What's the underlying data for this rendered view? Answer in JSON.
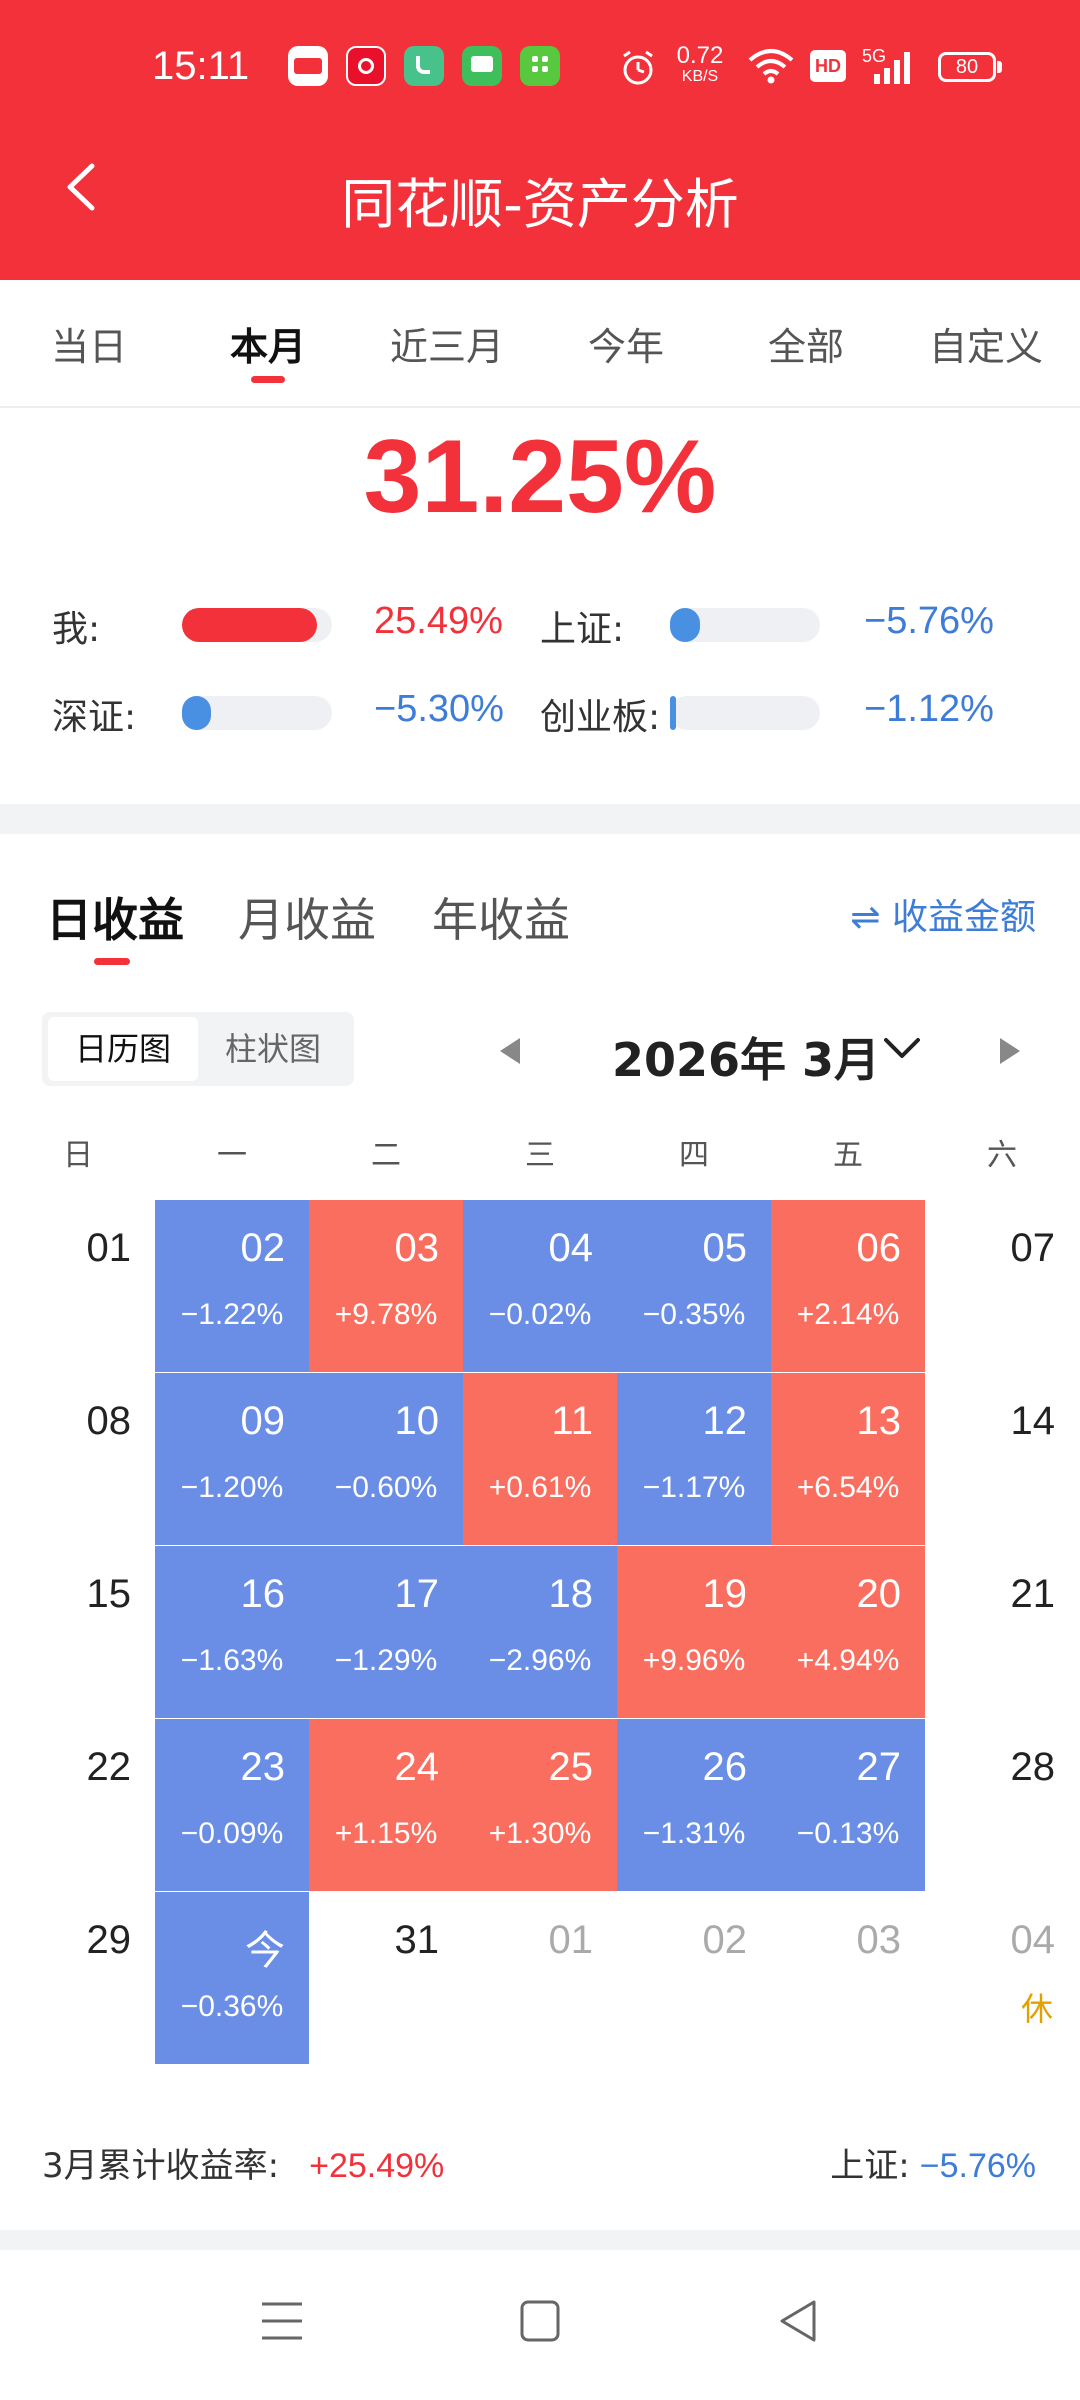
{
  "status_bar": {
    "time": "15:11",
    "net_speed_value": "0.72",
    "net_speed_unit": "KB/S",
    "hd": "HD",
    "network": "5G",
    "battery": "80",
    "app_icons": [
      "toutiao-icon",
      "app-red-icon",
      "phone-icon",
      "message-icon",
      "shop-icon"
    ]
  },
  "header": {
    "title": "同花顺-资产分析"
  },
  "period_tabs": [
    "当日",
    "本月",
    "近三月",
    "今年",
    "全部",
    "自定义"
  ],
  "active_period": "本月",
  "summary": {
    "total_pct": "31.25%",
    "comparisons": [
      {
        "label": "我:",
        "value": "25.49%",
        "fill": 0.9,
        "color": "#f2313b"
      },
      {
        "label": "上证:",
        "value": "−5.76%",
        "fill": 0.2,
        "color": "#4a90e2"
      },
      {
        "label": "深证:",
        "value": "−5.30%",
        "fill": 0.19,
        "color": "#4a90e2"
      },
      {
        "label": "创业板:",
        "value": "−1.12%",
        "fill": 0.03,
        "color": "#4a90e2"
      }
    ]
  },
  "returns_tabs": [
    "日收益",
    "月收益",
    "年收益"
  ],
  "active_returns_tab": "日收益",
  "switch_link": "⇌ 收益金额",
  "view_toggle": [
    "日历图",
    "柱状图"
  ],
  "active_view": "日历图",
  "month_label": "2026年 3月",
  "weekdays": [
    "日",
    "一",
    "二",
    "三",
    "四",
    "五",
    "六"
  ],
  "calendar": [
    [
      {
        "day": "01",
        "pct": "",
        "type": "plain"
      },
      {
        "day": "02",
        "pct": "−1.22%",
        "type": "loss"
      },
      {
        "day": "03",
        "pct": "+9.78%",
        "type": "gain"
      },
      {
        "day": "04",
        "pct": "−0.02%",
        "type": "loss"
      },
      {
        "day": "05",
        "pct": "−0.35%",
        "type": "loss"
      },
      {
        "day": "06",
        "pct": "+2.14%",
        "type": "gain"
      },
      {
        "day": "07",
        "pct": "",
        "type": "plain"
      }
    ],
    [
      {
        "day": "08",
        "pct": "",
        "type": "plain"
      },
      {
        "day": "09",
        "pct": "−1.20%",
        "type": "loss"
      },
      {
        "day": "10",
        "pct": "−0.60%",
        "type": "loss"
      },
      {
        "day": "11",
        "pct": "+0.61%",
        "type": "gain"
      },
      {
        "day": "12",
        "pct": "−1.17%",
        "type": "loss"
      },
      {
        "day": "13",
        "pct": "+6.54%",
        "type": "gain"
      },
      {
        "day": "14",
        "pct": "",
        "type": "plain"
      }
    ],
    [
      {
        "day": "15",
        "pct": "",
        "type": "plain"
      },
      {
        "day": "16",
        "pct": "−1.63%",
        "type": "loss"
      },
      {
        "day": "17",
        "pct": "−1.29%",
        "type": "loss"
      },
      {
        "day": "18",
        "pct": "−2.96%",
        "type": "loss"
      },
      {
        "day": "19",
        "pct": "+9.96%",
        "type": "gain"
      },
      {
        "day": "20",
        "pct": "+4.94%",
        "type": "gain"
      },
      {
        "day": "21",
        "pct": "",
        "type": "plain"
      }
    ],
    [
      {
        "day": "22",
        "pct": "",
        "type": "plain"
      },
      {
        "day": "23",
        "pct": "−0.09%",
        "type": "loss"
      },
      {
        "day": "24",
        "pct": "+1.15%",
        "type": "gain"
      },
      {
        "day": "25",
        "pct": "+1.30%",
        "type": "gain"
      },
      {
        "day": "26",
        "pct": "−1.31%",
        "type": "loss"
      },
      {
        "day": "27",
        "pct": "−0.13%",
        "type": "loss"
      },
      {
        "day": "28",
        "pct": "",
        "type": "plain"
      }
    ],
    [
      {
        "day": "29",
        "pct": "",
        "type": "plain"
      },
      {
        "day": "今",
        "pct": "−0.36%",
        "type": "loss"
      },
      {
        "day": "31",
        "pct": "",
        "type": "plain"
      },
      {
        "day": "01",
        "pct": "",
        "type": "muted"
      },
      {
        "day": "02",
        "pct": "",
        "type": "muted"
      },
      {
        "day": "03",
        "pct": "",
        "type": "muted"
      },
      {
        "day": "04",
        "pct": "",
        "type": "muted",
        "rest": "休"
      }
    ]
  ],
  "footer": {
    "cum_label": "3月累计收益率:",
    "cum_value": "+25.49%",
    "index_label": "上证:",
    "index_value": "−5.76%"
  },
  "colors": {
    "brand_red": "#f2313b",
    "loss_blue": "#6a8ee6",
    "gain_red": "#fa6e5f",
    "link_blue": "#3d7dd8"
  }
}
